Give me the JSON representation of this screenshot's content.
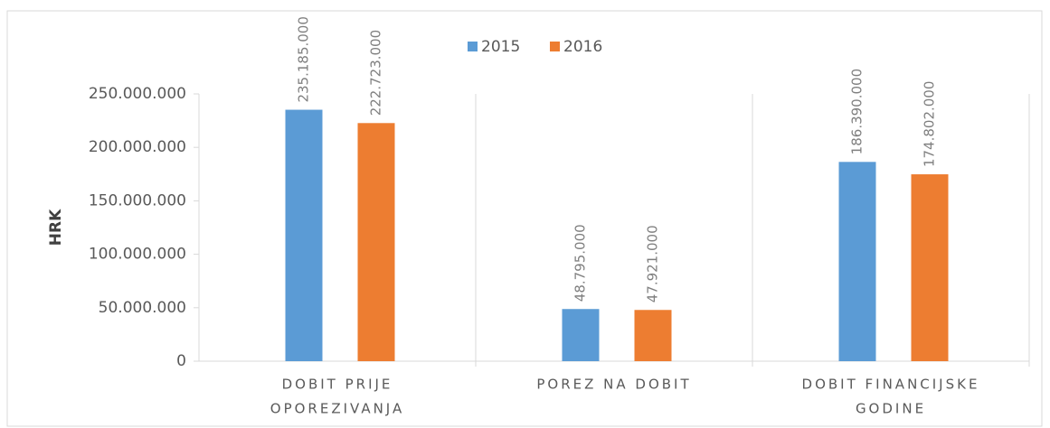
{
  "chart_data": {
    "type": "bar",
    "y_label": "HRK",
    "categories": [
      [
        "DOBIT PRIJE",
        "OPOREZIVANJA"
      ],
      [
        "POREZ NA DOBIT"
      ],
      [
        "DOBIT FINANCIJSKE",
        "GODINE"
      ]
    ],
    "series": [
      {
        "name": "2015",
        "color": "#5b9bd5",
        "values": [
          235185000,
          48795000,
          186390000
        ],
        "value_labels": [
          "235.185.000",
          "48.795.000",
          "186.390.000"
        ]
      },
      {
        "name": "2016",
        "color": "#ed7d31",
        "values": [
          222723000,
          47921000,
          174802000
        ],
        "value_labels": [
          "222.723.000",
          "47.921.000",
          "174.802.000"
        ]
      }
    ],
    "ylim": [
      0,
      250000000
    ],
    "yticks": [
      0,
      {
        "value": 50000000,
        "label": "50.000.000"
      },
      {
        "value": 100000000,
        "label": "100.000.000"
      },
      {
        "value": 150000000,
        "label": "150.000.000"
      },
      {
        "value": 200000000,
        "label": "200.000.000"
      },
      {
        "value": 250000000,
        "label": "250.000.000"
      }
    ],
    "grid": false,
    "legend": "top"
  }
}
